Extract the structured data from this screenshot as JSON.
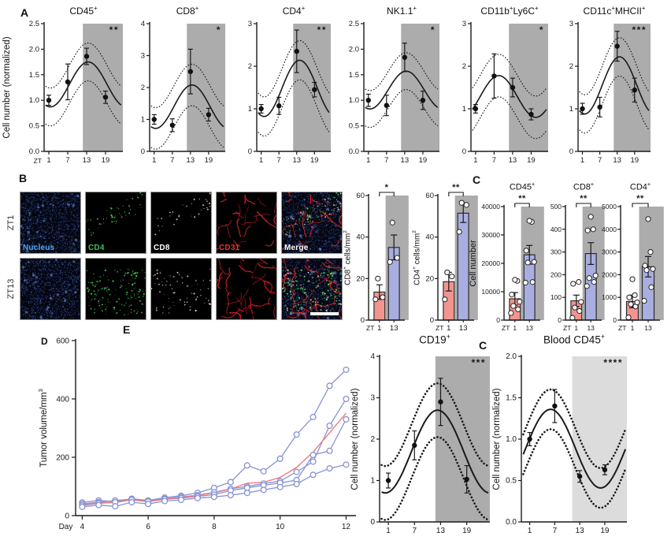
{
  "panel_labels": {
    "a": "A",
    "b": "B",
    "c_top": "C",
    "d": "D",
    "e": "E",
    "c_bottom": "C"
  },
  "colors": {
    "bar_zt1": "#F29490",
    "bar_zt13": "#A9AEE1",
    "bar_outline": "#2b2b2b",
    "shade_dark": "#ACACAC",
    "shade_light": "#DCDCDC",
    "tumor_line": "#8892D5",
    "tumor_mean": "#F07B7B",
    "axis": "#1a1a1a"
  },
  "microscopy": {
    "row_labels": [
      "ZT1",
      "ZT13"
    ],
    "channels": [
      {
        "label": "Nucleus",
        "color": "#4FA8F5"
      },
      {
        "label": "CD4",
        "color": "#3FC24F"
      },
      {
        "label": "CD8",
        "color": "#FFFFFF"
      },
      {
        "label": "CD31",
        "color": "#F03030"
      },
      {
        "label": "Merge",
        "color": "#FFFFFF"
      }
    ]
  },
  "chart_data": [
    {
      "id": "a_cd45",
      "type": "cosinor",
      "title": [
        [
          "CD45",
          "+"
        ]
      ],
      "ylabel": [
        [
          "Cell number (normalized)",
          ""
        ]
      ],
      "ylim": [
        0,
        2.5
      ],
      "yticks": [
        "0.0",
        "0.5",
        "1.0",
        "1.5",
        "2.0",
        "2.5"
      ],
      "xlim": [
        -0.5,
        24.5
      ],
      "xticks": [
        1,
        7,
        13,
        19
      ],
      "xprefix": "ZT",
      "shade_from": 11.8,
      "shade_color": "#ACACAC",
      "sig": "**",
      "dot": "fine",
      "points": {
        "x": [
          1,
          7,
          13,
          19
        ],
        "y": [
          1.0,
          1.36,
          1.86,
          1.06
        ],
        "err": [
          0.1,
          0.35,
          0.16,
          0.12
        ]
      },
      "fit": {
        "mesor": 1.31,
        "amplitude": 0.44,
        "peak": 13.5,
        "band": 0.37
      },
      "layout": {
        "ylabel_w": 24,
        "ml": 30,
        "mr": 4,
        "mt": 6,
        "mb": 24,
        "title_h": 20,
        "fs_title": 12,
        "fs_ylabel": 11.5
      }
    },
    {
      "id": "a_cd8",
      "type": "cosinor",
      "title": [
        [
          "CD8",
          "+"
        ]
      ],
      "ylim": [
        0,
        4
      ],
      "yticks": [
        "0",
        "1",
        "2",
        "3",
        "4"
      ],
      "xlim": [
        -0.5,
        24.5
      ],
      "xticks": [
        1,
        7,
        13,
        19
      ],
      "shade_from": 11.8,
      "shade_color": "#ACACAC",
      "sig": "*",
      "dot": "fine",
      "points": {
        "x": [
          1,
          7,
          13,
          19
        ],
        "y": [
          1.0,
          0.82,
          2.5,
          1.15
        ],
        "err": [
          0.15,
          0.2,
          0.7,
          0.2
        ]
      },
      "fit": {
        "mesor": 1.4,
        "amplitude": 0.68,
        "peak": 13.5,
        "band": 0.65
      },
      "layout": {
        "ml": 24,
        "mr": 4,
        "mt": 6,
        "mb": 24,
        "title_h": 20,
        "fs_title": 12
      }
    },
    {
      "id": "a_cd4",
      "type": "cosinor",
      "title": [
        [
          "CD4",
          "+"
        ]
      ],
      "ylim": [
        0,
        3
      ],
      "yticks": [
        "0",
        "1",
        "2",
        "3"
      ],
      "xlim": [
        -0.5,
        24.5
      ],
      "xticks": [
        1,
        7,
        13,
        19
      ],
      "shade_from": 11.8,
      "shade_color": "#ACACAC",
      "sig": "**",
      "dot": "fine",
      "points": {
        "x": [
          1,
          7,
          13,
          19
        ],
        "y": [
          1.0,
          1.07,
          2.35,
          1.45
        ],
        "err": [
          0.1,
          0.2,
          0.5,
          0.17
        ]
      },
      "fit": {
        "mesor": 1.48,
        "amplitude": 0.66,
        "peak": 14,
        "band": 0.46
      },
      "layout": {
        "ml": 30,
        "mr": 4,
        "mt": 6,
        "mb": 24,
        "title_h": 20,
        "fs_title": 12
      }
    },
    {
      "id": "a_nk11",
      "type": "cosinor",
      "title": [
        [
          "NK1.1",
          "+"
        ]
      ],
      "ylim": [
        0,
        2.5
      ],
      "yticks": [
        "0.0",
        "0.5",
        "1.0",
        "1.5",
        "2.0",
        "2.5"
      ],
      "xlim": [
        -0.5,
        24.5
      ],
      "xticks": [
        1,
        7,
        13,
        19
      ],
      "shade_from": 11.8,
      "shade_color": "#ACACAC",
      "sig": "*",
      "dot": "fine",
      "points": {
        "x": [
          1,
          7,
          13,
          19
        ],
        "y": [
          1.0,
          0.9,
          1.84,
          1.0
        ],
        "err": [
          0.12,
          0.2,
          0.28,
          0.18
        ]
      },
      "fit": {
        "mesor": 1.2,
        "amplitude": 0.37,
        "peak": 13.5,
        "band": 0.36
      },
      "layout": {
        "ml": 32,
        "mr": 4,
        "mt": 6,
        "mb": 24,
        "title_h": 20,
        "fs_title": 12
      }
    },
    {
      "id": "a_cd11b",
      "type": "cosinor",
      "title": [
        [
          "CD11b",
          "+"
        ],
        [
          "Ly6C",
          "+"
        ]
      ],
      "ylim": [
        0,
        3
      ],
      "yticks": [
        "0",
        "1",
        "2",
        "3"
      ],
      "xlim": [
        -0.5,
        24.5
      ],
      "xticks": [
        1,
        7,
        13,
        19
      ],
      "shade_from": 11.8,
      "shade_color": "#ACACAC",
      "sig": "*",
      "dot": "fine",
      "points": {
        "x": [
          1,
          7,
          13,
          19
        ],
        "y": [
          1.0,
          1.77,
          1.5,
          0.87
        ],
        "err": [
          0.1,
          0.52,
          0.22,
          0.13
        ]
      },
      "fit": {
        "mesor": 1.29,
        "amplitude": 0.49,
        "peak": 8.5,
        "band": 0.5
      },
      "layout": {
        "ml": 30,
        "mr": 4,
        "mt": 6,
        "mb": 24,
        "title_h": 20,
        "fs_title": 12
      }
    },
    {
      "id": "a_cd11c",
      "type": "cosinor",
      "title": [
        [
          "CD11c",
          "+"
        ],
        [
          "MHCII",
          "+"
        ]
      ],
      "ylim": [
        0,
        3
      ],
      "yticks": [
        "0",
        "1",
        "2",
        "3"
      ],
      "xlim": [
        -0.5,
        24.5
      ],
      "xticks": [
        1,
        7,
        13,
        19
      ],
      "shade_from": 11.8,
      "shade_color": "#ACACAC",
      "sig": "***",
      "dot": "fine",
      "points": {
        "x": [
          1,
          7,
          13,
          19
        ],
        "y": [
          1.0,
          1.04,
          2.47,
          1.44
        ],
        "err": [
          0.13,
          0.23,
          0.35,
          0.28
        ]
      },
      "fit": {
        "mesor": 1.55,
        "amplitude": 0.67,
        "peak": 13.8,
        "band": 0.45
      },
      "layout": {
        "ml": 30,
        "mr": 4,
        "mt": 6,
        "mb": 24,
        "title_h": 20,
        "fs_title": 12
      }
    },
    {
      "id": "b_cd8_density",
      "type": "bars",
      "ylabel": [
        [
          "CD8",
          "+"
        ],
        [
          " cells/mm",
          "2"
        ]
      ],
      "ylim": [
        0,
        60
      ],
      "yticks": [
        "0",
        "20",
        "40",
        "60"
      ],
      "cats": [
        "1",
        "13"
      ],
      "xprefix": "ZT",
      "sig": "*",
      "bar_colors": [
        "#F29490",
        "#A9AEE1"
      ],
      "means": [
        13.5,
        35
      ],
      "errs": [
        3.5,
        6
      ],
      "points": [
        [
          10,
          11,
          20
        ],
        [
          28,
          30,
          47
        ]
      ],
      "shade_color": "#ACACAC",
      "layout": {
        "ylabel_w": 14,
        "ml": 20,
        "mr": 8,
        "mt": 20,
        "mb": 18,
        "fs_ylabel": 10
      }
    },
    {
      "id": "b_cd4_density",
      "type": "bars",
      "ylabel": [
        [
          "CD4",
          "+"
        ],
        [
          " cells/mm",
          "2"
        ]
      ],
      "ylim": [
        0,
        60
      ],
      "yticks": [
        "0",
        "20",
        "40",
        "60"
      ],
      "cats": [
        "1",
        "13"
      ],
      "xprefix": "ZT",
      "sig": "**",
      "bar_colors": [
        "#F29490",
        "#A9AEE1"
      ],
      "means": [
        18.5,
        51.5
      ],
      "errs": [
        4.5,
        4.5
      ],
      "points": [
        [
          10,
          21,
          23
        ],
        [
          42.5,
          55.5,
          56.5
        ]
      ],
      "shade_color": "#ACACAC",
      "layout": {
        "ylabel_w": 14,
        "ml": 20,
        "mr": 8,
        "mt": 20,
        "mb": 18,
        "fs_ylabel": 10
      }
    },
    {
      "id": "c_cd45",
      "type": "bars",
      "title": [
        [
          "CD45",
          "+"
        ]
      ],
      "ylabel": [
        [
          "Cell number",
          ""
        ]
      ],
      "ylim": [
        0,
        40000
      ],
      "yticks": [
        "0",
        "10000",
        "20000",
        "30000",
        "40000"
      ],
      "cats": [
        "1",
        "13"
      ],
      "xprefix": "ZT",
      "sig": "**",
      "bar_colors": [
        "#F29490",
        "#A9AEE1"
      ],
      "means": [
        7500,
        23000
      ],
      "errs": [
        2200,
        3300
      ],
      "points": [
        [
          2500,
          3800,
          5000,
          6500,
          9000,
          13800,
          14200
        ],
        [
          13200,
          13400,
          20300,
          20500,
          24500,
          34600,
          35000
        ]
      ],
      "shade_color": "#ACACAC",
      "layout": {
        "ylabel_w": 12,
        "ml": 34,
        "mr": 8,
        "mt": 14,
        "mb": 18,
        "title_h": 20,
        "fs_title": 11,
        "fs_ylabel": 11,
        "fs_tick": 8.5
      }
    },
    {
      "id": "c_cd8",
      "type": "bars",
      "title": [
        [
          "CD8",
          "+"
        ]
      ],
      "ylim": [
        0,
        500
      ],
      "yticks": [
        "0",
        "100",
        "200",
        "300",
        "400",
        "500"
      ],
      "cats": [
        "1",
        "13"
      ],
      "xprefix": "ZT",
      "sig": "**",
      "bar_colors": [
        "#F29490",
        "#A9AEE1"
      ],
      "means": [
        85,
        293
      ],
      "errs": [
        25,
        48
      ],
      "points": [
        [
          10,
          40,
          55,
          80,
          160,
          168
        ],
        [
          150,
          168,
          185,
          196,
          395,
          400,
          455
        ]
      ],
      "shade_color": "#ACACAC",
      "layout": {
        "ml": 22,
        "mr": 6,
        "mt": 14,
        "mb": 18,
        "title_h": 20,
        "fs_title": 11,
        "fs_tick": 8.5
      }
    },
    {
      "id": "c_cd4",
      "type": "bars",
      "title": [
        [
          "CD4",
          "+"
        ]
      ],
      "ylim": [
        0,
        5000
      ],
      "yticks": [
        "0",
        "1000",
        "2000",
        "3000",
        "4000",
        "5000"
      ],
      "cats": [
        "1",
        "13"
      ],
      "xprefix": "ZT",
      "sig": "**",
      "bar_colors": [
        "#F29490",
        "#A9AEE1"
      ],
      "means": [
        820,
        2350
      ],
      "errs": [
        280,
        450
      ],
      "points": [
        [
          120,
          600,
          700,
          780,
          1000,
          1100,
          1800
        ],
        [
          850,
          1450,
          2200,
          2250,
          2400,
          3000,
          4450
        ]
      ],
      "shade_color": "#ACACAC",
      "layout": {
        "ml": 26,
        "mr": 8,
        "mt": 14,
        "mb": 18,
        "title_h": 20,
        "fs_title": 11,
        "fs_tick": 8.5
      }
    },
    {
      "id": "d_tumor",
      "type": "lines",
      "ylabel": [
        [
          "Tumor volume/mm",
          "3"
        ]
      ],
      "xlabel": "Day",
      "ylim": [
        0,
        600
      ],
      "yticks": [
        "0",
        "200",
        "400",
        "600"
      ],
      "xlim": [
        3.8,
        12.3
      ],
      "xticks": [
        4,
        6,
        8,
        10,
        12
      ],
      "x": [
        4,
        4.5,
        5,
        5.5,
        6,
        6.5,
        7,
        7.5,
        8,
        8.5,
        9,
        9.5,
        10,
        10.5,
        11,
        11.5,
        12
      ],
      "series": [
        {
          "name": "mouse-1",
          "color": "#8892D5",
          "marker": true,
          "values": [
            45,
            52,
            48,
            58,
            52,
            62,
            68,
            78,
            95,
            115,
            172,
            152,
            195,
            278,
            338,
            445,
            500
          ]
        },
        {
          "name": "mouse-2",
          "color": "#8892D5",
          "marker": true,
          "values": [
            40,
            46,
            52,
            56,
            50,
            58,
            64,
            70,
            80,
            92,
            100,
            110,
            118,
            150,
            185,
            308,
            400
          ]
        },
        {
          "name": "mouse-3",
          "color": "#8892D5",
          "marker": true,
          "values": [
            35,
            42,
            46,
            54,
            48,
            56,
            60,
            66,
            72,
            86,
            95,
            104,
            112,
            122,
            208,
            222,
            330
          ]
        },
        {
          "name": "mouse-4",
          "color": "#8892D5",
          "marker": true,
          "values": [
            30,
            36,
            32,
            46,
            40,
            50,
            54,
            60,
            64,
            70,
            78,
            88,
            98,
            108,
            140,
            162,
            175
          ]
        },
        {
          "name": "mean",
          "color": "#F07B7B",
          "marker": false,
          "values": [
            38,
            44,
            45,
            54,
            48,
            57,
            62,
            69,
            78,
            91,
            111,
            114,
            131,
            165,
            218,
            284,
            351
          ]
        }
      ],
      "layout": {
        "ylabel_w": 16,
        "ml": 34,
        "mr": 8,
        "mt": 12,
        "mb": 30,
        "fs_tick": 10,
        "fs_ylabel": 11.5
      }
    },
    {
      "id": "e_cd19",
      "type": "cosinor",
      "title": [
        [
          "CD19",
          "+"
        ]
      ],
      "ylabel": [
        [
          "Cell number (normalized)",
          ""
        ]
      ],
      "ylim": [
        0,
        4
      ],
      "yticks": [
        "0",
        "1",
        "2",
        "3",
        "4"
      ],
      "xlim": [
        -1,
        24.3
      ],
      "xticks": [
        1,
        7,
        13,
        19
      ],
      "shade_from": 11.8,
      "shade_color": "#ACACAC",
      "sig": "***",
      "dot": "coarse",
      "points": {
        "x": [
          1,
          7,
          13,
          19
        ],
        "y": [
          1.0,
          1.85,
          2.9,
          1.03
        ],
        "err": [
          0.18,
          0.35,
          0.57,
          0.33
        ]
      },
      "fit": {
        "mesor": 1.7,
        "amplitude": 1.0,
        "peak": 12.3,
        "band": 0.65
      },
      "layout": {
        "ylabel_w": 14,
        "ml": 24,
        "mr": 6,
        "mt": 8,
        "mb": 26,
        "title_h": 24,
        "fs_title": 13.5,
        "fs_ylabel": 11.5,
        "fs_tick": 10
      }
    },
    {
      "id": "c2_blood",
      "type": "cosinor",
      "title": [
        [
          "Blood CD45",
          "+"
        ]
      ],
      "ylabel": [
        [
          "Cell number (normalized)",
          ""
        ]
      ],
      "ylim": [
        0,
        2
      ],
      "yticks": [
        "0.0",
        "0.5",
        "1.0",
        "1.5",
        "2.0"
      ],
      "xlim": [
        -1,
        24.3
      ],
      "xticks": [
        1,
        7,
        13,
        19
      ],
      "shade_from": 11.2,
      "shade_color": "#DCDCDC",
      "sig": "****",
      "dot": "coarse",
      "points": {
        "x": [
          1,
          7,
          13,
          19
        ],
        "y": [
          1.0,
          1.4,
          0.55,
          0.63
        ],
        "err": [
          0.08,
          0.2,
          0.07,
          0.06
        ]
      },
      "fit": {
        "mesor": 0.885,
        "amplitude": 0.475,
        "peak": 6,
        "band": 0.24
      },
      "layout": {
        "ylabel_w": 14,
        "ml": 24,
        "mr": 6,
        "mt": 8,
        "mb": 26,
        "title_h": 24,
        "fs_title": 13.5,
        "fs_ylabel": 11.5,
        "fs_tick": 10
      }
    }
  ]
}
